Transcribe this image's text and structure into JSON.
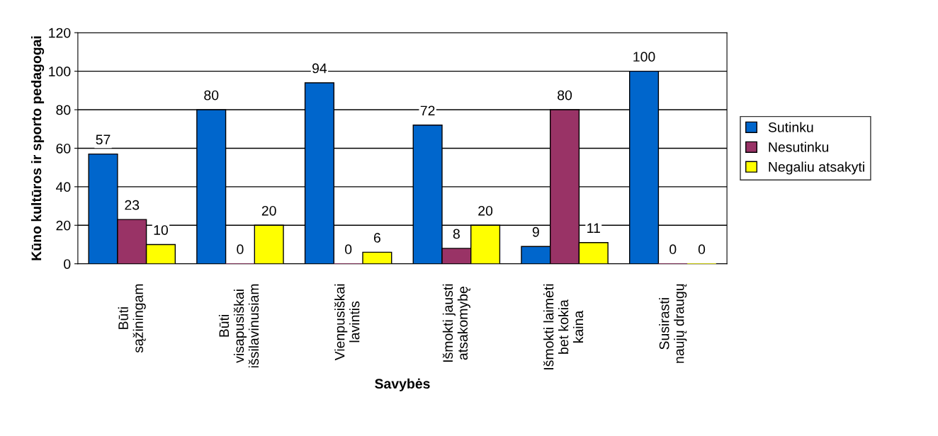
{
  "chart_data": {
    "type": "bar",
    "xlabel": "Savybės",
    "ylabel": "Kūno kultūros ir sporto pedagogai",
    "categories": [
      "Būti\nsąžiningam",
      "Būti\nvisapusiškai\nišsilavinusiam",
      "Vienpusiškai\nlavintis",
      "Išmokti jausti\natsakomybę",
      "Išmokti laimėti\nbet kokia\nkaina",
      "Susirasti\nnaujų draugų"
    ],
    "series": [
      {
        "name": "Sutinku",
        "color": "#0066cc",
        "values": [
          57,
          80,
          94,
          72,
          9,
          100
        ]
      },
      {
        "name": "Nesutinku",
        "color": "#993366",
        "values": [
          23,
          0,
          0,
          8,
          80,
          0
        ]
      },
      {
        "name": "Negaliu atsakyti",
        "color": "#ffff00",
        "values": [
          10,
          20,
          6,
          20,
          11,
          0
        ]
      }
    ],
    "ylim": [
      0,
      120
    ],
    "yticks": [
      0,
      20,
      40,
      60,
      80,
      100,
      120
    ],
    "grid": "y",
    "legend": "right",
    "data_labels": true
  }
}
